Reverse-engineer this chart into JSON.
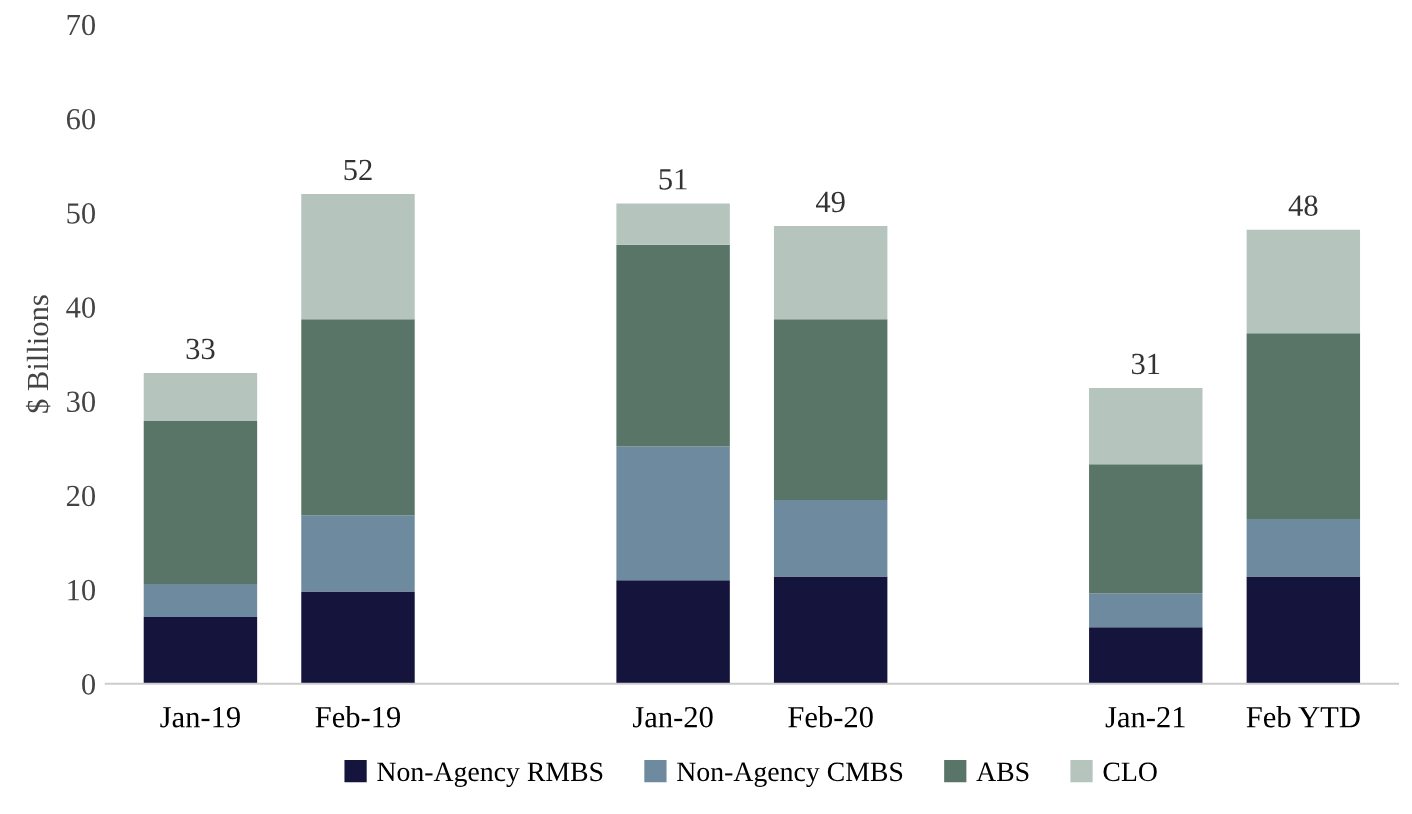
{
  "chart_data": {
    "type": "bar",
    "stacked": true,
    "ylabel": "$ Billions",
    "categories": [
      "Jan-19",
      "Feb-19",
      null,
      "Jan-20",
      "Feb-20",
      null,
      "Jan-21",
      "Feb YTD"
    ],
    "series": [
      {
        "name": "Non-Agency RMBS",
        "color": "#14143c",
        "values": [
          7.1,
          9.8,
          null,
          11.0,
          11.4,
          null,
          6.0,
          11.4
        ]
      },
      {
        "name": "Non-Agency CMBS",
        "color": "#6e8a9e",
        "values": [
          3.5,
          8.1,
          null,
          14.2,
          8.1,
          null,
          3.6,
          6.1
        ]
      },
      {
        "name": "ABS",
        "color": "#587567",
        "values": [
          17.3,
          20.8,
          null,
          21.4,
          19.2,
          null,
          13.7,
          19.7
        ]
      },
      {
        "name": "CLO",
        "color": "#b5c4bd",
        "values": [
          5.1,
          13.3,
          null,
          4.4,
          9.9,
          null,
          8.1,
          11.0
        ]
      }
    ],
    "totals": [
      "33",
      "52",
      null,
      "51",
      "49",
      null,
      "31",
      "48"
    ],
    "ylim": [
      0,
      70
    ],
    "yticks": [
      0,
      10,
      20,
      30,
      40,
      50,
      60,
      70
    ],
    "grid": false,
    "legend": "bottom"
  }
}
